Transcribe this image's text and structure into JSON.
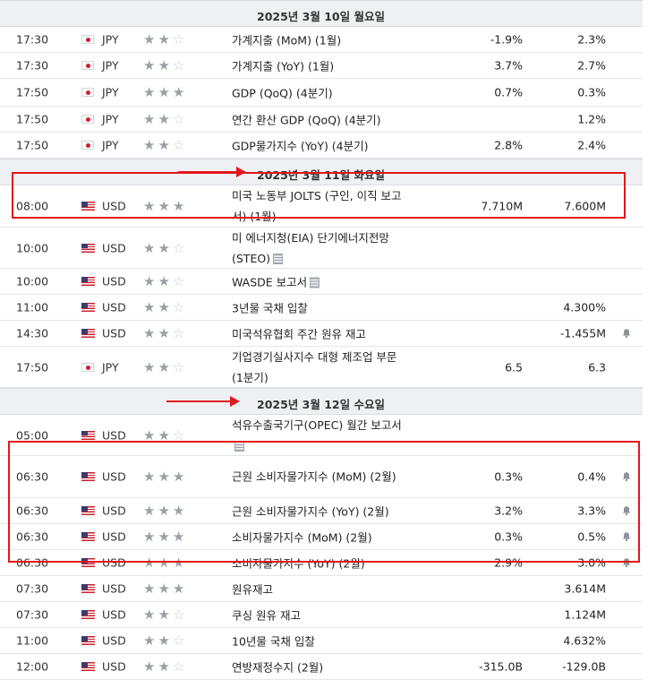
{
  "days": [
    {
      "date": "2025년 3월 10일 월요일",
      "events": [
        {
          "time": "17:30",
          "country": "jp",
          "currency": "JPY",
          "stars": 2,
          "event": "가계지출 (MoM) (1월)",
          "actual": "-1.9%",
          "forecast": "2.3%",
          "bell": false,
          "doc": false
        },
        {
          "time": "17:30",
          "country": "jp",
          "currency": "JPY",
          "stars": 2,
          "event": "가계지출 (YoY) (1월)",
          "actual": "3.7%",
          "forecast": "2.7%",
          "bell": false,
          "doc": false
        },
        {
          "time": "17:50",
          "country": "jp",
          "currency": "JPY",
          "stars": 3,
          "event": "GDP (QoQ) (4분기)",
          "actual": "0.7%",
          "forecast": "0.3%",
          "bell": false,
          "doc": false
        },
        {
          "time": "17:50",
          "country": "jp",
          "currency": "JPY",
          "stars": 2,
          "event": "연간 환산 GDP (QoQ) (4분기)",
          "actual": "",
          "forecast": "1.2%",
          "bell": false,
          "doc": false
        },
        {
          "time": "17:50",
          "country": "jp",
          "currency": "JPY",
          "stars": 2,
          "event": "GDP물가지수 (YoY) (4분기)",
          "actual": "2.8%",
          "forecast": "2.4%",
          "bell": false,
          "doc": false
        }
      ]
    },
    {
      "date": "2025년 3월 11일 화요일",
      "events": [
        {
          "time": "08:00",
          "country": "us",
          "currency": "USD",
          "stars": 3,
          "event": "미국 노동부 JOLTS (구인, 이직 보고서) (1월)",
          "actual": "7.710M",
          "forecast": "7.600M",
          "bell": false,
          "doc": false
        },
        {
          "time": "10:00",
          "country": "us",
          "currency": "USD",
          "stars": 2,
          "event": "미 에너지청(EIA) 단기에너지전망(STEO)",
          "actual": "",
          "forecast": "",
          "bell": false,
          "doc": true
        },
        {
          "time": "10:00",
          "country": "us",
          "currency": "USD",
          "stars": 2,
          "event": "WASDE 보고서",
          "actual": "",
          "forecast": "",
          "bell": false,
          "doc": true
        },
        {
          "time": "11:00",
          "country": "us",
          "currency": "USD",
          "stars": 2,
          "event": "3년물 국채 입찰",
          "actual": "",
          "forecast": "4.300%",
          "bell": false,
          "doc": false
        },
        {
          "time": "14:30",
          "country": "us",
          "currency": "USD",
          "stars": 2,
          "event": "미국석유협회 주간 원유 재고",
          "actual": "",
          "forecast": "-1.455M",
          "bell": true,
          "doc": false
        },
        {
          "time": "17:50",
          "country": "jp",
          "currency": "JPY",
          "stars": 2,
          "event": "기업경기실사지수 대형 제조업 부문 (1분기)",
          "actual": "6.5",
          "forecast": "6.3",
          "bell": false,
          "doc": false
        }
      ]
    },
    {
      "date": "2025년 3월 12일 수요일",
      "events": [
        {
          "time": "05:00",
          "country": "us",
          "currency": "USD",
          "stars": 2,
          "event": "석유수출국기구(OPEC) 월간 보고서",
          "actual": "",
          "forecast": "",
          "bell": false,
          "doc": true
        },
        {
          "time": "06:30",
          "country": "us",
          "currency": "USD",
          "stars": 3,
          "event": "근원 소비자물가지수 (MoM) (2월)",
          "actual": "0.3%",
          "forecast": "0.4%",
          "bell": true,
          "doc": false
        },
        {
          "time": "06:30",
          "country": "us",
          "currency": "USD",
          "stars": 3,
          "event": "근원 소비자물가지수 (YoY) (2월)",
          "actual": "3.2%",
          "forecast": "3.3%",
          "bell": true,
          "doc": false
        },
        {
          "time": "06:30",
          "country": "us",
          "currency": "USD",
          "stars": 3,
          "event": "소비자물가지수 (MoM) (2월)",
          "actual": "0.3%",
          "forecast": "0.5%",
          "bell": true,
          "doc": false
        },
        {
          "time": "06:30",
          "country": "us",
          "currency": "USD",
          "stars": 3,
          "event": "소비자물가지수 (YoY) (2월)",
          "actual": "2.9%",
          "forecast": "3.0%",
          "bell": true,
          "doc": false
        },
        {
          "time": "07:30",
          "country": "us",
          "currency": "USD",
          "stars": 3,
          "event": "원유재고",
          "actual": "",
          "forecast": "3.614M",
          "bell": false,
          "doc": false
        },
        {
          "time": "07:30",
          "country": "us",
          "currency": "USD",
          "stars": 2,
          "event": "쿠싱 원유 재고",
          "actual": "",
          "forecast": "1.124M",
          "bell": false,
          "doc": false
        },
        {
          "time": "11:00",
          "country": "us",
          "currency": "USD",
          "stars": 2,
          "event": "10년물 국채 입찰",
          "actual": "",
          "forecast": "4.632%",
          "bell": false,
          "doc": false
        },
        {
          "time": "12:00",
          "country": "us",
          "currency": "USD",
          "stars": 2,
          "event": "연방재정수지 (2월)",
          "actual": "-315.0B",
          "forecast": "-129.0B",
          "bell": false,
          "doc": false
        }
      ]
    }
  ],
  "colors": {
    "highlight": "#e3161b",
    "date_bg": "#eef0f3"
  }
}
